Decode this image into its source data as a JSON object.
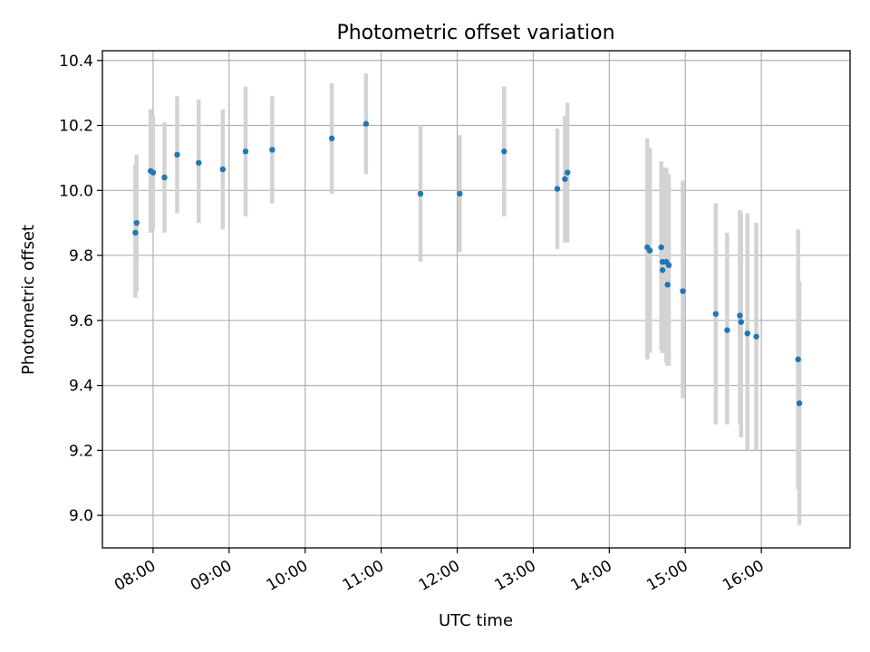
{
  "chart_data": {
    "type": "scatter",
    "title": "Photometric offset variation",
    "xlabel": "UTC time",
    "ylabel": "Photometric offset",
    "xlim": [
      "07:20",
      "17:10"
    ],
    "ylim": [
      8.9,
      10.43
    ],
    "grid": true,
    "x_ticks": [
      "08:00",
      "09:00",
      "10:00",
      "11:00",
      "12:00",
      "13:00",
      "14:00",
      "15:00",
      "16:00"
    ],
    "y_ticks": [
      9.0,
      9.2,
      9.4,
      9.6,
      9.8,
      10.0,
      10.2,
      10.4
    ],
    "y_tick_labels": [
      "9.0",
      "9.2",
      "9.4",
      "9.6",
      "9.8",
      "10.0",
      "10.2",
      "10.4"
    ],
    "colors": {
      "points": "#1f77b4",
      "error_bars": "#d3d3d3"
    },
    "points": [
      {
        "x": "07:46",
        "y": 9.87,
        "err_low": 9.67,
        "err_high": 10.08
      },
      {
        "x": "07:47",
        "y": 9.9,
        "err_low": 9.69,
        "err_high": 10.11
      },
      {
        "x": "07:58",
        "y": 10.06,
        "err_low": 9.87,
        "err_high": 10.25
      },
      {
        "x": "08:00",
        "y": 10.055,
        "err_low": 9.88,
        "err_high": 10.23
      },
      {
        "x": "08:09",
        "y": 10.04,
        "err_low": 9.87,
        "err_high": 10.21
      },
      {
        "x": "08:19",
        "y": 10.11,
        "err_low": 9.93,
        "err_high": 10.29
      },
      {
        "x": "08:36",
        "y": 10.085,
        "err_low": 9.9,
        "err_high": 10.28
      },
      {
        "x": "08:55",
        "y": 10.065,
        "err_low": 9.88,
        "err_high": 10.25
      },
      {
        "x": "09:13",
        "y": 10.12,
        "err_low": 9.92,
        "err_high": 10.32
      },
      {
        "x": "09:34",
        "y": 10.125,
        "err_low": 9.96,
        "err_high": 10.29
      },
      {
        "x": "10:21",
        "y": 10.16,
        "err_low": 9.99,
        "err_high": 10.33
      },
      {
        "x": "10:48",
        "y": 10.205,
        "err_low": 10.05,
        "err_high": 10.36
      },
      {
        "x": "11:31",
        "y": 9.99,
        "err_low": 9.78,
        "err_high": 10.2
      },
      {
        "x": "12:02",
        "y": 9.99,
        "err_low": 9.81,
        "err_high": 10.17
      },
      {
        "x": "12:37",
        "y": 10.12,
        "err_low": 9.92,
        "err_high": 10.32
      },
      {
        "x": "13:19",
        "y": 10.005,
        "err_low": 9.82,
        "err_high": 10.19
      },
      {
        "x": "13:25",
        "y": 10.035,
        "err_low": 9.84,
        "err_high": 10.23
      },
      {
        "x": "13:27",
        "y": 10.055,
        "err_low": 9.84,
        "err_high": 10.27
      },
      {
        "x": "14:30",
        "y": 9.825,
        "err_low": 9.48,
        "err_high": 10.16
      },
      {
        "x": "14:32",
        "y": 9.815,
        "err_low": 9.5,
        "err_high": 10.13
      },
      {
        "x": "14:41",
        "y": 9.825,
        "err_low": 9.51,
        "err_high": 10.09
      },
      {
        "x": "14:42",
        "y": 9.78,
        "err_low": 9.5,
        "err_high": 10.07
      },
      {
        "x": "14:42",
        "y": 9.755,
        "err_low": 9.5,
        "err_high": 10.06
      },
      {
        "x": "14:45",
        "y": 9.78,
        "err_low": 9.47,
        "err_high": 10.07
      },
      {
        "x": "14:47",
        "y": 9.77,
        "err_low": 9.46,
        "err_high": 10.05
      },
      {
        "x": "14:46",
        "y": 9.71,
        "err_low": 9.46,
        "err_high": 10.0
      },
      {
        "x": "14:58",
        "y": 9.69,
        "err_low": 9.36,
        "err_high": 10.03
      },
      {
        "x": "15:24",
        "y": 9.62,
        "err_low": 9.28,
        "err_high": 9.96
      },
      {
        "x": "15:33",
        "y": 9.57,
        "err_low": 9.28,
        "err_high": 9.87
      },
      {
        "x": "15:43",
        "y": 9.615,
        "err_low": 9.28,
        "err_high": 9.94
      },
      {
        "x": "15:44",
        "y": 9.595,
        "err_low": 9.24,
        "err_high": 9.93
      },
      {
        "x": "15:49",
        "y": 9.56,
        "err_low": 9.2,
        "err_high": 9.93
      },
      {
        "x": "15:56",
        "y": 9.55,
        "err_low": 9.2,
        "err_high": 9.9
      },
      {
        "x": "16:29",
        "y": 9.48,
        "err_low": 9.08,
        "err_high": 9.88
      },
      {
        "x": "16:30",
        "y": 9.345,
        "err_low": 8.97,
        "err_high": 9.72
      }
    ]
  }
}
